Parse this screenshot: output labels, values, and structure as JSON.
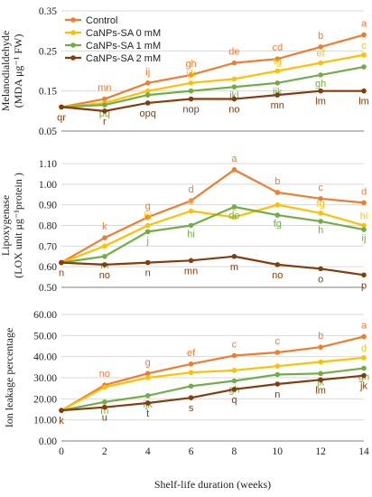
{
  "colors": {
    "Control": "#ED7D31",
    "CaNPs-SA 0 mM": "#FFC000",
    "CaNPs-SA 1 mM": "#70AD47",
    "CaNPs-SA 2 mM": "#843C0C",
    "axis": "#7f7f7f",
    "grid": "#d9d9d9"
  },
  "shared_x": {
    "label": "Shelf-life duration (weeks)",
    "ticks": [
      0,
      2,
      4,
      6,
      8,
      10,
      12,
      14
    ]
  },
  "chart_data": [
    {
      "type": "line",
      "ylabel_lines": [
        "Melanodialdehyde",
        "(MDA μg⁻¹ FW)"
      ],
      "ylim": [
        0.05,
        0.35
      ],
      "yticks": [
        0.05,
        0.15,
        0.25,
        0.35
      ],
      "ytick_labels": [
        "0.05",
        "0.15",
        "0.25",
        "0.35"
      ],
      "x": [
        0,
        2,
        4,
        6,
        8,
        10,
        12,
        14
      ],
      "legend": {
        "placement": "top-left",
        "entries": [
          "Control",
          "CaNPs-SA 0 mM",
          "CaNPs-SA 1 mM",
          "CaNPs-SA 2 mM"
        ]
      },
      "series": [
        {
          "name": "Control",
          "values": [
            0.11,
            0.13,
            0.17,
            0.19,
            0.22,
            0.23,
            0.26,
            0.29
          ],
          "letters": [
            "",
            "mn",
            "ij",
            "gh",
            "de",
            "cd",
            "b",
            "a"
          ]
        },
        {
          "name": "CaNPs-SA 0 mM",
          "values": [
            0.11,
            0.12,
            0.15,
            0.17,
            0.18,
            0.2,
            0.22,
            0.24
          ],
          "letters": [
            "",
            "",
            "",
            "ijk",
            "",
            "fg",
            "ef",
            "c"
          ]
        },
        {
          "name": "CaNPs-SA 1 mM",
          "values": [
            0.11,
            0.115,
            0.14,
            0.15,
            0.16,
            0.17,
            0.19,
            0.21
          ],
          "letters": [
            "",
            "pq",
            "",
            "",
            "jkl",
            "ijk",
            "gh",
            ""
          ]
        },
        {
          "name": "CaNPs-SA 2 mM",
          "values": [
            0.11,
            0.1,
            0.12,
            0.13,
            0.13,
            0.14,
            0.15,
            0.15
          ],
          "letters": [
            "qr",
            "r",
            "opq",
            "nop",
            "no",
            "mn",
            "lm",
            "lm"
          ]
        }
      ]
    },
    {
      "type": "line",
      "ylabel_lines": [
        "Lipoxygenase",
        "(LOX unit μg⁻¹protein )"
      ],
      "ylim": [
        0.5,
        1.1
      ],
      "yticks": [
        0.5,
        0.6,
        0.7,
        0.8,
        0.9,
        1.0,
        1.1
      ],
      "ytick_labels": [
        "0.50",
        "0.60",
        "0.70",
        "0.80",
        "0.90",
        "1.00",
        "1.10"
      ],
      "x": [
        0,
        2,
        4,
        6,
        8,
        10,
        12,
        14
      ],
      "series": [
        {
          "name": "Control",
          "values": [
            0.62,
            0.74,
            0.84,
            0.92,
            1.07,
            0.96,
            0.93,
            0.91
          ],
          "letters": [
            "",
            "k",
            "g",
            "d",
            "a",
            "b",
            "c",
            "d"
          ]
        },
        {
          "name": "CaNPs-SA 0 mM",
          "values": [
            0.62,
            0.7,
            0.8,
            0.87,
            0.84,
            0.9,
            0.86,
            0.8
          ],
          "letters": [
            "",
            "",
            "hi",
            "e",
            "c",
            "",
            "fg",
            "hi"
          ]
        },
        {
          "name": "CaNPs-SA 1 mM",
          "values": [
            0.62,
            0.65,
            0.77,
            0.8,
            0.89,
            0.85,
            0.82,
            0.78
          ],
          "letters": [
            "",
            "m",
            "j",
            "hi",
            "de",
            "fg",
            "h",
            "ij"
          ]
        },
        {
          "name": "CaNPs-SA 2 mM",
          "values": [
            0.62,
            0.61,
            0.62,
            0.63,
            0.65,
            0.61,
            0.59,
            0.56
          ],
          "letters": [
            "n",
            "no",
            "n",
            "mn",
            "m",
            "no",
            "o",
            "p"
          ]
        }
      ]
    },
    {
      "type": "line",
      "ylabel_lines": [
        "Ion leakage percentage"
      ],
      "ylim": [
        0,
        60
      ],
      "yticks": [
        0,
        10,
        20,
        30,
        40,
        50,
        60
      ],
      "ytick_labels": [
        "0.00",
        "10.00",
        "20.00",
        "30.00",
        "40.00",
        "50.00",
        "60.00"
      ],
      "x": [
        0,
        2,
        4,
        6,
        8,
        10,
        12,
        14
      ],
      "series": [
        {
          "name": "Control",
          "values": [
            14.5,
            26.5,
            32,
            36.5,
            40.5,
            42,
            44.5,
            49.5
          ],
          "letters": [
            "",
            "no",
            "g",
            "ef",
            "c",
            "c",
            "b",
            "a"
          ]
        },
        {
          "name": "CaNPs-SA 0 mM",
          "values": [
            14.5,
            25.5,
            30,
            32.5,
            33.5,
            35.5,
            37.5,
            39.5
          ],
          "letters": [
            "",
            "",
            "",
            "",
            "",
            "",
            "",
            "d"
          ]
        },
        {
          "name": "CaNPs-SA 1 mM",
          "values": [
            14.5,
            18.5,
            21.5,
            26,
            28.5,
            31.5,
            32,
            34.5
          ],
          "letters": [
            "",
            "m",
            "ijk",
            "",
            "gh",
            "",
            "jk",
            "gh"
          ]
        },
        {
          "name": "CaNPs-SA 2 mM",
          "values": [
            14.5,
            16,
            18,
            20.5,
            24.5,
            27,
            29,
            31
          ],
          "letters": [
            "k",
            "u",
            "t",
            "s",
            "q",
            "n",
            "lm",
            "jk"
          ]
        }
      ]
    }
  ]
}
